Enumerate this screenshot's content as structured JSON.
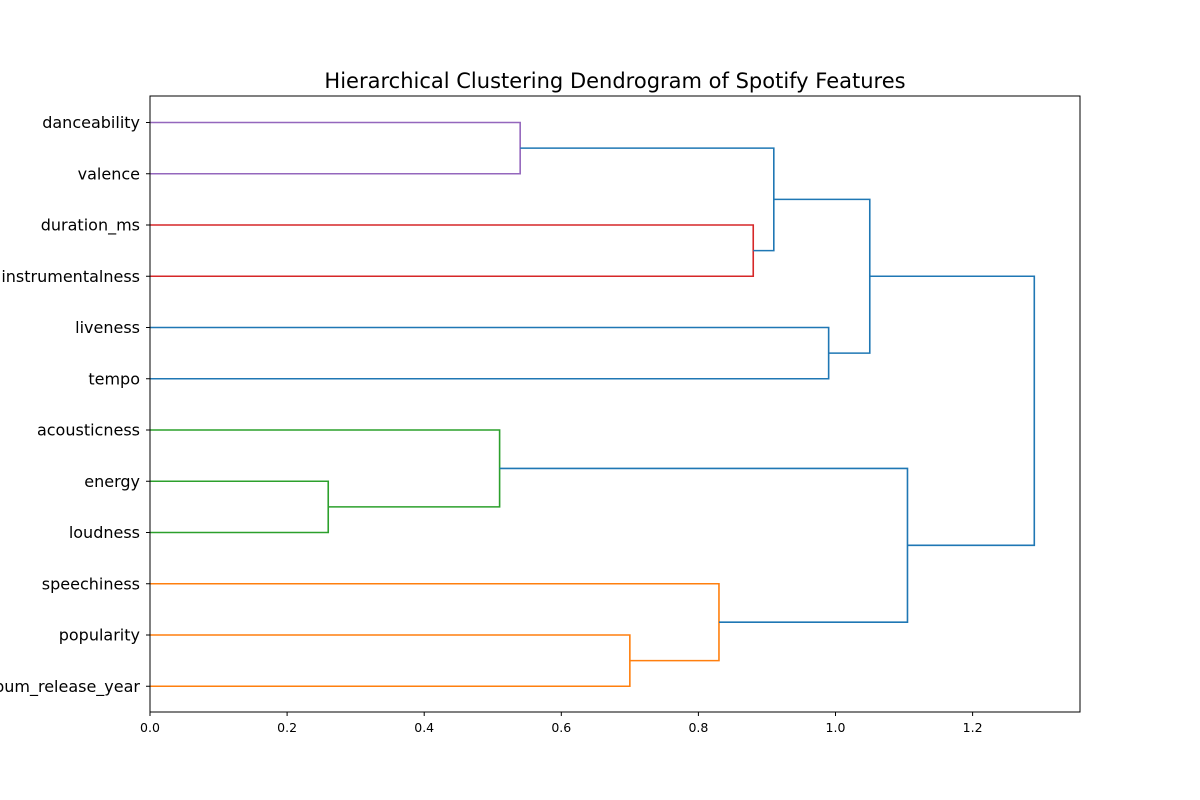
{
  "chart_data": {
    "type": "dendrogram",
    "title": "Hierarchical Clustering Dendrogram of Spotify Features",
    "xlabel": "",
    "ylabel": "",
    "xlim": [
      0.0,
      1.357
    ],
    "xticks": [
      "0.0",
      "0.2",
      "0.4",
      "0.6",
      "0.8",
      "1.0",
      "1.2"
    ],
    "grid": false,
    "leaves": [
      "danceability",
      "valence",
      "duration_ms",
      "instrumentalness",
      "liveness",
      "tempo",
      "acousticness",
      "energy",
      "loudness",
      "speechiness",
      "popularity",
      "album_release_year"
    ],
    "links": [
      {
        "children": [
          "danceability",
          "valence"
        ],
        "distance": 0.54,
        "color": "#9467bd"
      },
      {
        "children": [
          "duration_ms",
          "instrumentalness"
        ],
        "distance": 0.88,
        "color": "#d62728"
      },
      {
        "children": [
          "danceability+valence",
          "duration_ms+instrumentalness"
        ],
        "distance": 0.91,
        "color": "#1f77b4"
      },
      {
        "children": [
          "liveness",
          "tempo"
        ],
        "distance": 0.99,
        "color": "#1f77b4"
      },
      {
        "children": [
          "danceability+valence+duration_ms+instrumentalness",
          "liveness+tempo"
        ],
        "distance": 1.05,
        "color": "#1f77b4"
      },
      {
        "children": [
          "energy",
          "loudness"
        ],
        "distance": 0.26,
        "color": "#2ca02c"
      },
      {
        "children": [
          "acousticness",
          "energy+loudness"
        ],
        "distance": 0.51,
        "color": "#2ca02c"
      },
      {
        "children": [
          "popularity",
          "album_release_year"
        ],
        "distance": 0.7,
        "color": "#ff7f0e"
      },
      {
        "children": [
          "speechiness",
          "popularity+album_release_year"
        ],
        "distance": 0.83,
        "color": "#ff7f0e"
      },
      {
        "children": [
          "acousticness+energy+loudness",
          "speechiness+popularity+album_release_year"
        ],
        "distance": 1.105,
        "color": "#1f77b4"
      },
      {
        "children": [
          "cluster_A",
          "cluster_B"
        ],
        "distance": 1.29,
        "color": "#1f77b4"
      }
    ]
  }
}
